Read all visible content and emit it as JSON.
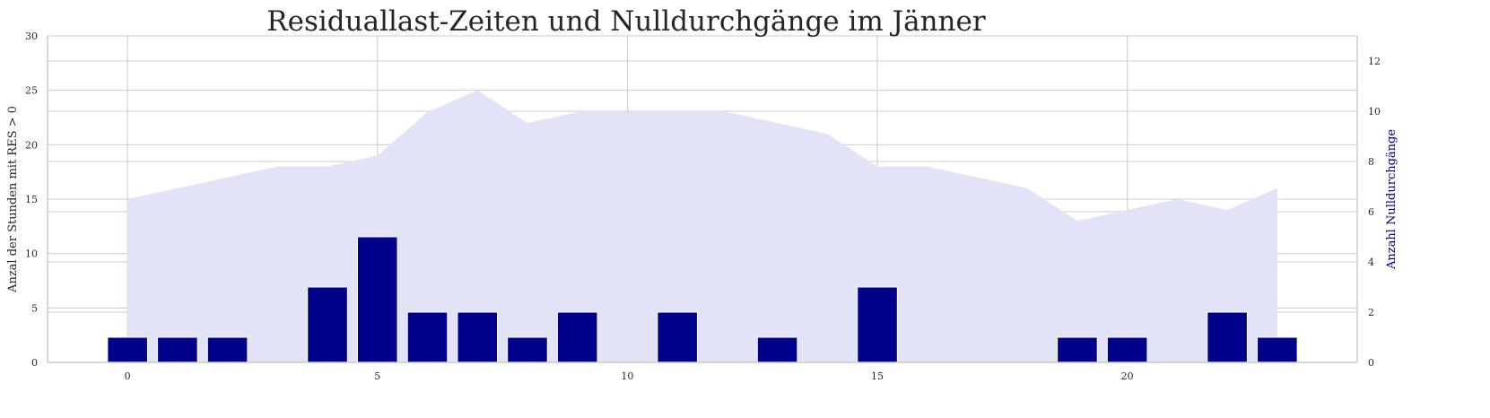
{
  "chart_data": {
    "type": "bar",
    "title": "Residuallast-Zeiten und Nulldurchgänge im Jänner",
    "x": [
      0,
      1,
      2,
      3,
      4,
      5,
      6,
      7,
      8,
      9,
      10,
      11,
      12,
      13,
      14,
      15,
      16,
      17,
      18,
      19,
      20,
      21,
      22,
      23
    ],
    "xticks": [
      0,
      5,
      10,
      15,
      20
    ],
    "xlim": [
      -1.6,
      24.6
    ],
    "series": [
      {
        "kind": "area",
        "axis": "left",
        "values": [
          15,
          16,
          17,
          18,
          18,
          19,
          23,
          25,
          22,
          23,
          23,
          23,
          23,
          22,
          21,
          18,
          18,
          17,
          16,
          13,
          14,
          15,
          14,
          16
        ],
        "color": "#e3e3f7"
      },
      {
        "kind": "bar",
        "axis": "right",
        "values": [
          1,
          1,
          1,
          0,
          3,
          5,
          2,
          2,
          1,
          2,
          0,
          2,
          0,
          1,
          0,
          3,
          0,
          0,
          0,
          1,
          1,
          0,
          2,
          1
        ],
        "color": "#00008b"
      }
    ],
    "left_axis": {
      "label": "Anzal der Stunden mit RES > 0",
      "ylim": [
        0,
        30
      ],
      "ticks": [
        0,
        5,
        10,
        15,
        20,
        25,
        30
      ]
    },
    "right_axis": {
      "label": "Anzahl Nulldurchgänge",
      "label_color": "#00008b",
      "ylim": [
        0,
        13
      ],
      "ticks": [
        0,
        2,
        4,
        6,
        8,
        10,
        12
      ]
    },
    "grid": true,
    "legend": "none"
  }
}
